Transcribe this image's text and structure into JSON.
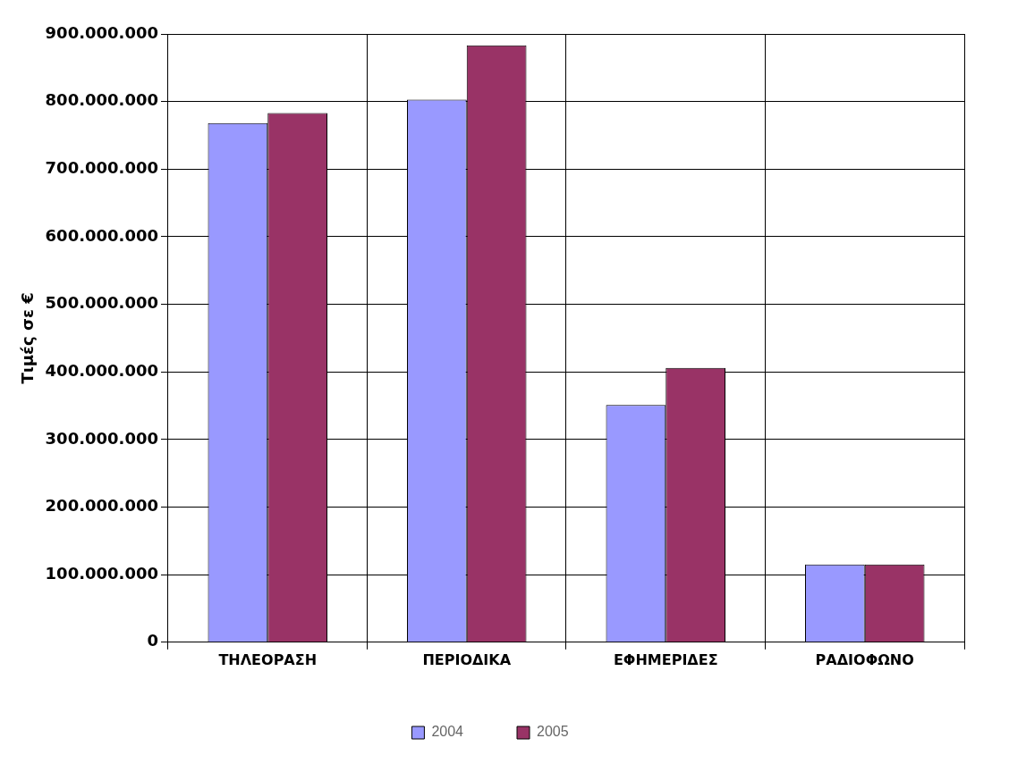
{
  "chart_data": {
    "type": "bar",
    "ylabel": "Τιμές σε €",
    "categories": [
      "ΤΗΛΕΟΡΑΣΗ",
      "ΠΕΡΙΟΔΙΚΑ",
      "ΕΦΗΜΕΡΙΔΕΣ",
      "ΡΑΔΙΟΦΩΝΟ"
    ],
    "series": [
      {
        "name": "2004",
        "color": "#9999ff",
        "values": [
          768000000,
          803000000,
          351000000,
          115000000
        ]
      },
      {
        "name": "2005",
        "color": "#993366",
        "values": [
          783000000,
          883000000,
          406000000,
          115000000
        ]
      }
    ],
    "ylim": [
      0,
      900000000
    ],
    "yticks": [
      {
        "value": 0,
        "label": "0"
      },
      {
        "value": 100000000,
        "label": "100.000.000"
      },
      {
        "value": 200000000,
        "label": "200.000.000"
      },
      {
        "value": 300000000,
        "label": "300.000.000"
      },
      {
        "value": 400000000,
        "label": "400.000.000"
      },
      {
        "value": 500000000,
        "label": "500.000.000"
      },
      {
        "value": 600000000,
        "label": "600.000.000"
      },
      {
        "value": 700000000,
        "label": "700.000.000"
      },
      {
        "value": 800000000,
        "label": "800.000.000"
      },
      {
        "value": 900000000,
        "label": "900.000.000"
      }
    ],
    "grid": true,
    "legend": "bottom"
  }
}
